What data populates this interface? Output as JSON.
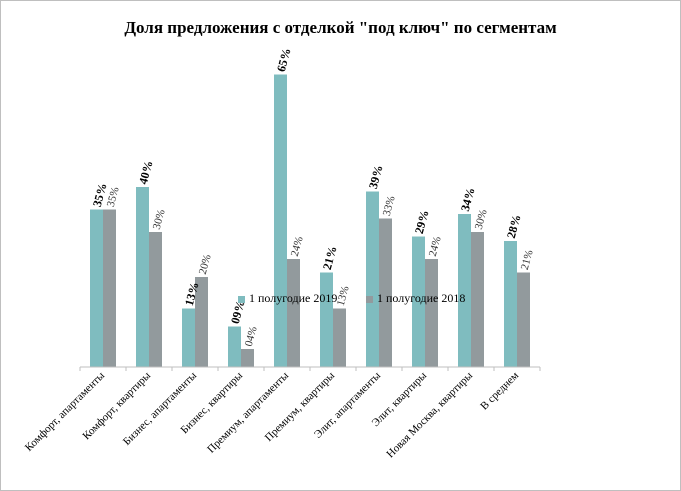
{
  "chart_data": {
    "type": "bar",
    "title": "Доля предложения с отделкой \"под ключ\" по сегментам",
    "xlabel": "",
    "ylabel": "",
    "ylim": [
      0,
      70
    ],
    "grid": false,
    "legend_position": "center",
    "categories": [
      "Комфорт, апартаменты",
      "Комфорт, квартиры",
      "Бизнес, апартаменты",
      "Бизнес, квартиры",
      "Премиум, апартаменты",
      "Премиум, квартиры",
      "Элит, апартаменты",
      "Элит, квартиры",
      "Новая Москва, квартиры",
      "В среднем"
    ],
    "series": [
      {
        "name": "1 полугодие 2019",
        "color": "#7fbcbf",
        "values": [
          35,
          40,
          13,
          9,
          65,
          21,
          39,
          29,
          34,
          28
        ],
        "labels": [
          "35%",
          "40%",
          "13%",
          "09%",
          "65%",
          "21%",
          "39%",
          "29%",
          "34%",
          "28%"
        ]
      },
      {
        "name": "1 полугодие 2018",
        "color": "#929a9d",
        "values": [
          35,
          30,
          20,
          4,
          24,
          13,
          33,
          24,
          30,
          21
        ],
        "labels": [
          "35%",
          "30%",
          "20%",
          "04%",
          "24%",
          "13%",
          "33%",
          "24%",
          "30%",
          "21%"
        ]
      }
    ]
  }
}
